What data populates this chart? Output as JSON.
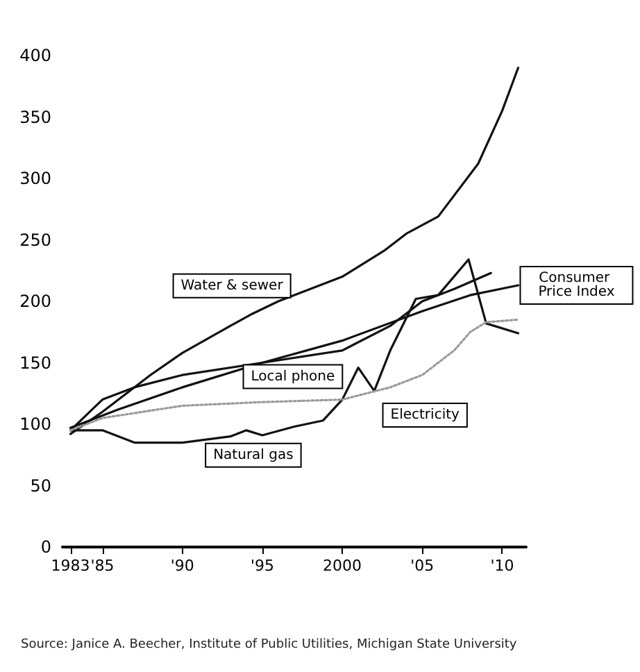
{
  "chart_data": {
    "type": "line",
    "series": [
      {
        "name": "Water & sewer",
        "color": "#111111",
        "x": [
          1983,
          1985,
          1988,
          1990,
          1993,
          1994.4,
          1996,
          1998,
          2000,
          2002.6,
          2004,
          2006,
          2008.5,
          2010,
          2011
        ],
        "values": [
          92,
          110,
          140,
          158,
          180,
          190,
          200,
          210,
          220,
          241,
          255,
          269,
          312,
          355,
          390
        ]
      },
      {
        "name": "Local phone",
        "color": "#111111",
        "x": [
          1983,
          1985,
          1987,
          1990,
          1995,
          2000,
          2003,
          2005,
          2007,
          2009.3
        ],
        "values": [
          95,
          120,
          130,
          140,
          150,
          160,
          180,
          200,
          210,
          223
        ]
      },
      {
        "name": "Consumer Price Index",
        "color": "#111111",
        "x": [
          1983,
          1986,
          1990,
          1995,
          2000,
          2005,
          2008,
          2011
        ],
        "values": [
          97,
          112,
          130,
          150,
          168,
          192,
          205,
          213
        ]
      },
      {
        "name": "Natural gas",
        "color": "#111111",
        "x": [
          1983,
          1985,
          1987,
          1990,
          1993,
          1994,
          1995,
          1997,
          1998.8,
          2000,
          2001,
          2002,
          2003,
          2004.6,
          2006,
          2007.9,
          2009,
          2011
        ],
        "values": [
          95,
          95,
          85,
          85,
          90,
          95,
          91,
          98,
          103,
          120,
          146,
          127,
          160,
          202,
          205,
          234,
          182,
          174
        ]
      },
      {
        "name": "Electricity",
        "color": "#9a9a9a",
        "line_style": "dotted",
        "x": [
          1983,
          1985,
          1990,
          1995,
          2000,
          2003,
          2005,
          2007,
          2008,
          2009,
          2011
        ],
        "values": [
          95,
          105,
          115,
          118,
          120,
          130,
          140,
          160,
          175,
          183,
          185
        ]
      }
    ],
    "xlim": [
      1982.5,
      2011.5
    ],
    "xticks": [
      1983,
      {
        "value": 1985,
        "label": "'85"
      },
      {
        "value": 1990,
        "label": "'90"
      },
      {
        "value": 1995,
        "label": "'95"
      },
      2000,
      {
        "value": 2005,
        "label": "'05"
      },
      {
        "value": 2010,
        "label": "'10"
      }
    ],
    "ylim": [
      0,
      400
    ],
    "yticks": [
      0,
      50,
      100,
      150,
      200,
      250,
      300,
      350,
      400
    ],
    "grid": false,
    "legend": false,
    "marker": "none",
    "line_style": "solid",
    "annotations": [
      "Source: Janice A. Beecher, Institute of Public Utilities, Michigan State University"
    ]
  }
}
